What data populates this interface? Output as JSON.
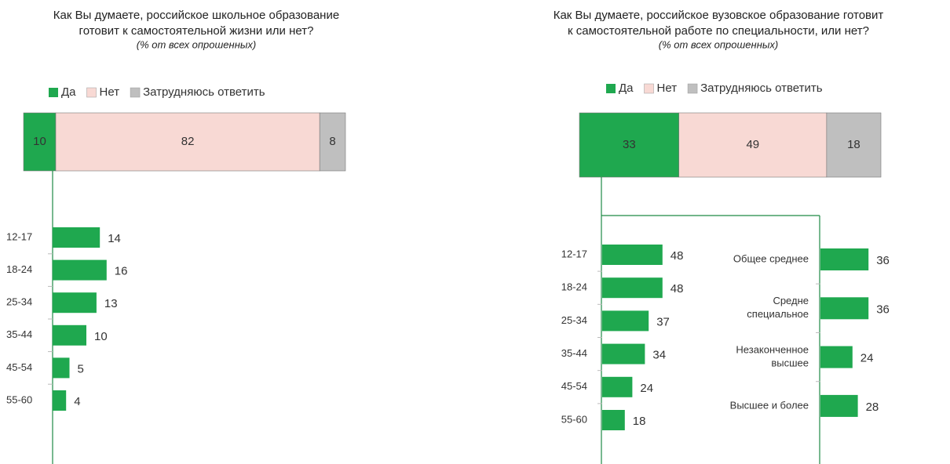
{
  "chart_data": [
    {
      "type": "stacked-breakdown",
      "title": [
        "Как Вы думаете, российское школьное образование",
        "готовит к самостоятельной жизни или нет?"
      ],
      "subtitle": "(% от всех опрошенных)",
      "series": [
        {
          "name": "Да",
          "color": "#1fa84f",
          "values": [
            10
          ]
        },
        {
          "name": "Нет",
          "color": "#f8d9d4",
          "values": [
            82
          ]
        },
        {
          "name": "Затрудняюсь ответить",
          "color": "#bfbfbf",
          "values": [
            8
          ]
        }
      ],
      "groups": [
        {
          "categories": [
            [
              "12-17"
            ],
            [
              "18-24"
            ],
            [
              "25-34"
            ],
            [
              "35-44"
            ],
            [
              "45-54"
            ],
            [
              "55-60"
            ]
          ],
          "values": [
            14,
            16,
            13,
            10,
            5,
            4
          ]
        }
      ]
    },
    {
      "type": "stacked-breakdown",
      "title": [
        "Как Вы думаете, российское вузовское образование готовит",
        "к самостоятельной работе по специальности, или нет?"
      ],
      "subtitle": "(% от всех опрошенных)",
      "series": [
        {
          "name": "Да",
          "color": "#1fa84f",
          "values": [
            33
          ]
        },
        {
          "name": "Нет",
          "color": "#f8d9d4",
          "values": [
            49
          ]
        },
        {
          "name": "Затрудняюсь ответить",
          "color": "#bfbfbf",
          "values": [
            18
          ]
        }
      ],
      "groups": [
        {
          "categories": [
            [
              "12-17"
            ],
            [
              "18-24"
            ],
            [
              "25-34"
            ],
            [
              "35-44"
            ],
            [
              "45-54"
            ],
            [
              "55-60"
            ]
          ],
          "values": [
            48,
            48,
            37,
            34,
            24,
            18
          ]
        },
        {
          "categories": [
            [
              "Общее среднее"
            ],
            [
              "Средне",
              "специальное"
            ],
            [
              "Незаконченное",
              "высшее"
            ],
            [
              "Высшее и более"
            ]
          ],
          "values": [
            36,
            36,
            24,
            28
          ]
        }
      ]
    }
  ]
}
